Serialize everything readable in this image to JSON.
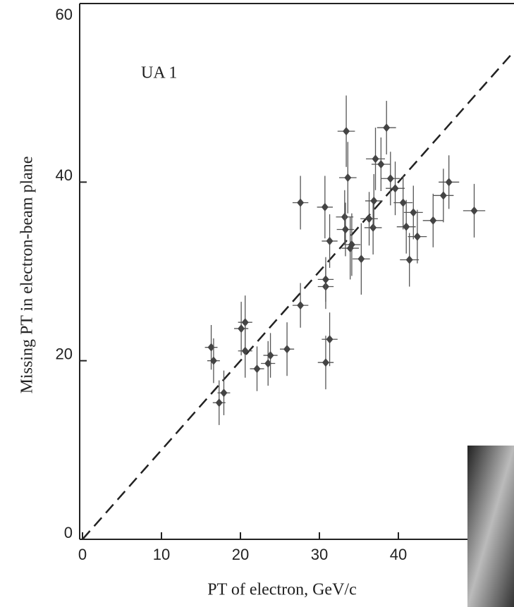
{
  "chart_data": {
    "type": "scatter",
    "annotation": "UA 1",
    "x_label": "PT of electron, GeV/c",
    "y_label": "Missing PT in electron-beam plane",
    "xlim": [
      0,
      55
    ],
    "ylim": [
      0,
      60
    ],
    "xticks": [
      0,
      10,
      20,
      30,
      40
    ],
    "yticks": [
      0,
      20,
      40,
      60
    ],
    "diagonal": true,
    "color": "#444444",
    "x": [
      16.3,
      16.6,
      17.3,
      17.9,
      20.1,
      20.6,
      20.6,
      22.1,
      23.5,
      23.8,
      25.9,
      27.6,
      27.6,
      30.7,
      30.8,
      30.8,
      30.8,
      31.3,
      31.3,
      33.4,
      33.6,
      33.2,
      33.3,
      33.9,
      34.1,
      35.3,
      36.3,
      36.8,
      36.9,
      37.1,
      37.8,
      38.5,
      39.0,
      39.6,
      40.6,
      41.0,
      41.4,
      41.9,
      42.4,
      44.4,
      45.7,
      46.4,
      49.6
    ],
    "values": [
      21.5,
      20.0,
      15.3,
      16.4,
      23.6,
      24.3,
      21.1,
      19.1,
      19.7,
      20.6,
      21.3,
      37.7,
      26.2,
      37.2,
      28.3,
      29.1,
      19.8,
      22.4,
      33.4,
      45.7,
      40.5,
      36.1,
      34.7,
      32.6,
      33.0,
      31.4,
      35.9,
      34.9,
      37.9,
      42.6,
      42.0,
      46.1,
      40.4,
      39.3,
      37.7,
      35.0,
      31.3,
      36.6,
      33.9,
      35.7,
      38.5,
      40.0,
      36.8
    ],
    "xerr": [
      0.8,
      0.8,
      0.8,
      0.8,
      0.9,
      0.9,
      0.9,
      0.9,
      0.9,
      0.9,
      0.9,
      1.0,
      1.0,
      1.0,
      1.0,
      1.0,
      1.0,
      1.0,
      1.0,
      1.1,
      1.1,
      1.1,
      1.1,
      1.1,
      1.1,
      1.1,
      1.1,
      1.1,
      1.1,
      1.2,
      1.2,
      1.2,
      1.2,
      1.2,
      1.2,
      1.2,
      1.2,
      1.2,
      1.2,
      1.3,
      1.3,
      1.3,
      1.4
    ],
    "yerr": [
      2.5,
      2.5,
      2.5,
      2.5,
      3.0,
      3.0,
      3.0,
      2.5,
      2.5,
      2.5,
      3.0,
      3.0,
      2.5,
      3.5,
      2.5,
      2.5,
      3.0,
      3.0,
      3.0,
      4.0,
      4.0,
      3.0,
      3.0,
      3.5,
      3.5,
      4.0,
      3.0,
      3.0,
      3.0,
      3.5,
      3.0,
      3.0,
      3.0,
      3.0,
      3.0,
      3.0,
      3.0,
      3.0,
      3.0,
      3.0,
      3.0,
      3.0,
      3.0
    ]
  }
}
